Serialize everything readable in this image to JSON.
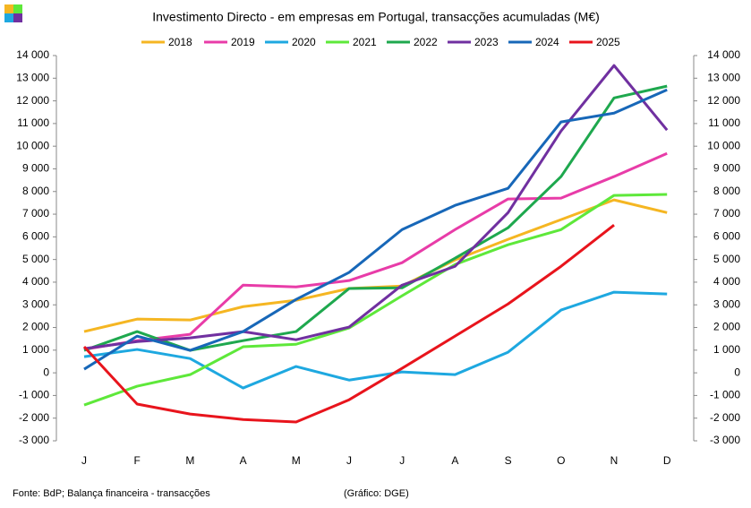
{
  "chart_data": {
    "type": "line",
    "title": "Investimento  Directo - em empresas em Portugal,  transacções acumuladas  (M€)",
    "categories": [
      "J",
      "F",
      "M",
      "A",
      "M",
      "J",
      "J",
      "A",
      "S",
      "O",
      "N",
      "D"
    ],
    "series": [
      {
        "name": "2018",
        "color": "#f5b622",
        "values": [
          1820,
          2370,
          2330,
          2920,
          3200,
          3720,
          3830,
          4980,
          5890,
          6760,
          7630,
          7070
        ]
      },
      {
        "name": "2019",
        "color": "#e83ca8",
        "values": [
          1030,
          1420,
          1700,
          3870,
          3790,
          4070,
          4860,
          6320,
          7670,
          7710,
          8660,
          9680
        ]
      },
      {
        "name": "2020",
        "color": "#1ea8e0",
        "values": [
          710,
          1030,
          630,
          -670,
          280,
          -320,
          40,
          -80,
          910,
          2770,
          3560,
          3480
        ]
      },
      {
        "name": "2021",
        "color": "#5ee83a",
        "values": [
          -1420,
          -590,
          -80,
          1150,
          1260,
          1980,
          3400,
          4780,
          5650,
          6320,
          7830,
          7870
        ]
      },
      {
        "name": "2022",
        "color": "#1ea84e",
        "values": [
          990,
          1820,
          990,
          1420,
          1820,
          3720,
          3750,
          5060,
          6400,
          8660,
          12130,
          12650
        ]
      },
      {
        "name": "2023",
        "color": "#7030a0",
        "values": [
          1070,
          1380,
          1540,
          1820,
          1460,
          2020,
          3870,
          4700,
          7070,
          10670,
          13560,
          10710
        ]
      },
      {
        "name": "2024",
        "color": "#1767b8",
        "values": [
          160,
          1620,
          990,
          1820,
          3240,
          4430,
          6320,
          7390,
          8140,
          11070,
          11460,
          12490
        ]
      },
      {
        "name": "2025",
        "color": "#e8141c",
        "values": [
          1150,
          -1380,
          -1820,
          -2060,
          -2170,
          -1190,
          200,
          1620,
          3040,
          4700,
          6520,
          null
        ]
      }
    ],
    "ylim": [
      -3000,
      14000
    ],
    "yticks": [
      {
        "value": -3000,
        "label": "-3 000"
      },
      {
        "value": -2000,
        "label": "-2 000"
      },
      {
        "value": -1000,
        "label": "-1 000"
      },
      0,
      {
        "value": 1000,
        "label": "1 000"
      },
      {
        "value": 2000,
        "label": "2 000"
      },
      {
        "value": 3000,
        "label": "3 000"
      },
      {
        "value": 4000,
        "label": "4 000"
      },
      {
        "value": 5000,
        "label": "5 000"
      },
      {
        "value": 6000,
        "label": "6 000"
      },
      {
        "value": 7000,
        "label": "7 000"
      },
      {
        "value": 8000,
        "label": "8 000"
      },
      {
        "value": 9000,
        "label": "9 000"
      },
      {
        "value": 10000,
        "label": "10 000"
      },
      {
        "value": 11000,
        "label": "11 000"
      },
      {
        "value": 12000,
        "label": "12 000"
      },
      {
        "value": 13000,
        "label": "13 000"
      },
      {
        "value": 14000,
        "label": "14 000"
      }
    ],
    "y2lim": [
      -3000,
      14000
    ],
    "y2ticks": [
      {
        "value": -3000,
        "label": "-3 000"
      },
      {
        "value": -2000,
        "label": "-2 000"
      },
      {
        "value": -1000,
        "label": "-1 000"
      },
      0,
      {
        "value": 1000,
        "label": "1 000"
      },
      {
        "value": 2000,
        "label": "2 000"
      },
      {
        "value": 3000,
        "label": "3 000"
      },
      {
        "value": 4000,
        "label": "4 000"
      },
      {
        "value": 5000,
        "label": "5 000"
      },
      {
        "value": 6000,
        "label": "6 000"
      },
      {
        "value": 7000,
        "label": "7 000"
      },
      {
        "value": 8000,
        "label": "8 000"
      },
      {
        "value": 9000,
        "label": "9 000"
      },
      {
        "value": 10000,
        "label": "10 000"
      },
      {
        "value": 11000,
        "label": "11 000"
      },
      {
        "value": 12000,
        "label": "12 000"
      },
      {
        "value": 13000,
        "label": "13 000"
      },
      {
        "value": 14000,
        "label": "14 000"
      }
    ],
    "legend": "top",
    "grid": false,
    "source": "Fonte: BdP; Balança financeira - transacções",
    "credit": "(Gráfico: DGE)"
  }
}
